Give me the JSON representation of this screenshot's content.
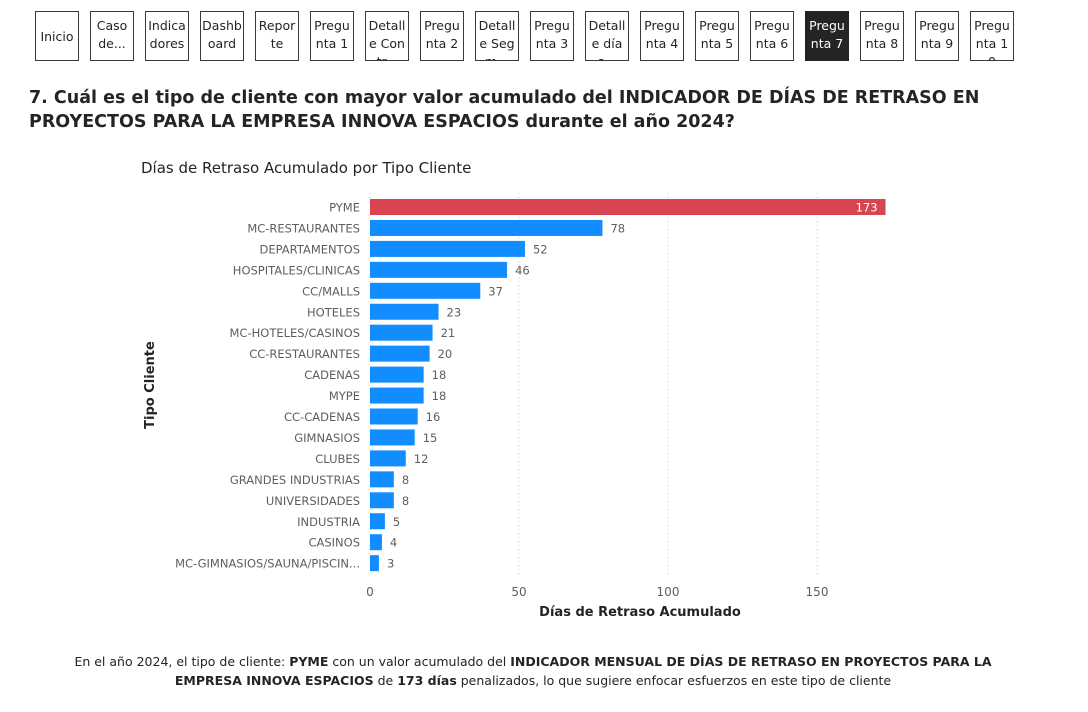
{
  "nav": {
    "buttons": [
      {
        "label": "Inicio",
        "active": false
      },
      {
        "label": "Caso de...",
        "active": false
      },
      {
        "label": "Indicadores",
        "active": false
      },
      {
        "label": "Dashboard",
        "active": false
      },
      {
        "label": "Reporte",
        "active": false
      },
      {
        "label": "Pregunta 1",
        "active": false
      },
      {
        "label": "Detalle Contr...",
        "active": false
      },
      {
        "label": "Pregunta 2",
        "active": false
      },
      {
        "label": "Detalle Segm...",
        "active": false
      },
      {
        "label": "Pregunta 3",
        "active": false
      },
      {
        "label": "Detalle días...",
        "active": false
      },
      {
        "label": "Pregunta 4",
        "active": false
      },
      {
        "label": "Pregunta 5",
        "active": false
      },
      {
        "label": "Pregunta 6",
        "active": false
      },
      {
        "label": "Pregunta 7",
        "active": true
      },
      {
        "label": "Pregunta 8",
        "active": false
      },
      {
        "label": "Pregunta 9",
        "active": false
      },
      {
        "label": "Pregunta 10",
        "active": false
      }
    ]
  },
  "question": "7. Cuál es el tipo de cliente con mayor valor acumulado del INDICADOR DE DÍAS DE RETRASO EN PROYECTOS PARA LA EMPRESA INNOVA ESPACIOS  durante el año 2024?",
  "chart_data": {
    "type": "bar",
    "orientation": "horizontal",
    "title": "Días de Retraso Acumulado por Tipo Cliente",
    "xlabel": "Días de Retraso Acumulado",
    "ylabel": "Tipo Cliente",
    "xlim": [
      0,
      180
    ],
    "xticks": [
      0,
      50,
      100,
      150
    ],
    "grid": true,
    "categories": [
      "PYME",
      "MC-RESTAURANTES",
      "DEPARTAMENTOS",
      "HOSPITALES/CLINICAS",
      "CC/MALLS",
      "HOTELES",
      "MC-HOTELES/CASINOS",
      "CC-RESTAURANTES",
      "CADENAS",
      "MYPE",
      "CC-CADENAS",
      "GIMNASIOS",
      "CLUBES",
      "GRANDES INDUSTRIAS",
      "UNIVERSIDADES",
      "INDUSTRIA",
      "CASINOS",
      "MC-GIMNASIOS/SAUNA/PISCIN..."
    ],
    "values": [
      173,
      78,
      52,
      46,
      37,
      23,
      21,
      20,
      18,
      18,
      16,
      15,
      12,
      8,
      8,
      5,
      4,
      3
    ],
    "highlight_index": 0,
    "colors": {
      "highlight": "#D64550",
      "default": "#118DFF"
    }
  },
  "footer": {
    "part1": "En el año 2024, el tipo de cliente: ",
    "client": "PYME",
    "part2": " con un valor acumulado del ",
    "indicator": "INDICADOR MENSUAL DE DÍAS DE RETRASO EN PROYECTOS PARA LA EMPRESA INNOVA ESPACIOS",
    "part3": " de ",
    "value": "173 días",
    "part4": " penalizados, lo que sugiere enfocar esfuerzos en este tipo de cliente"
  }
}
